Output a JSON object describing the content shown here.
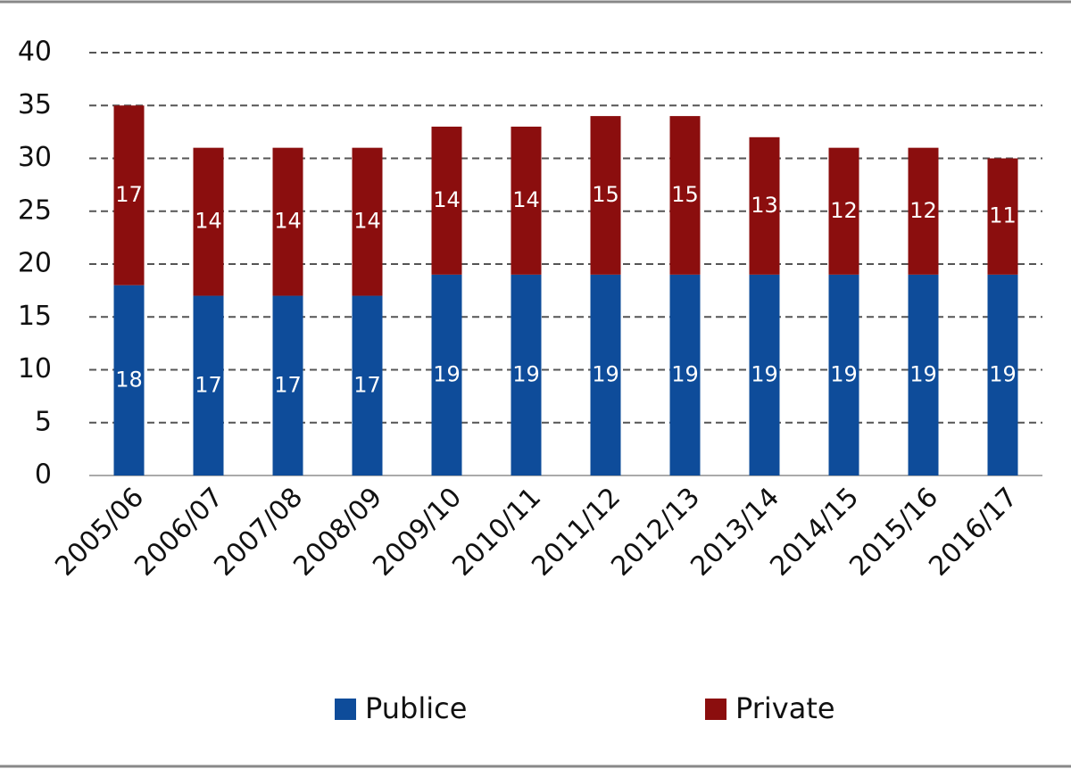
{
  "chart_data": {
    "type": "stacked-bar",
    "categories": [
      "2005/06",
      "2006/07",
      "2007/08",
      "2008/09",
      "2009/10",
      "2010/11",
      "2011/12",
      "2012/13",
      "2013/14",
      "2014/15",
      "2015/16",
      "2016/17"
    ],
    "series": [
      {
        "name": "Publice",
        "color": "#0e4c9a",
        "values": [
          18,
          17,
          17,
          17,
          19,
          19,
          19,
          19,
          19,
          19,
          19,
          19
        ]
      },
      {
        "name": "Private",
        "color": "#8b0e0e",
        "values": [
          17,
          14,
          14,
          14,
          14,
          14,
          15,
          15,
          13,
          12,
          12,
          11
        ]
      }
    ],
    "ylim": [
      0,
      40
    ],
    "yticks": [
      0,
      5,
      10,
      15,
      20,
      25,
      30,
      35,
      40
    ],
    "grid": true
  }
}
